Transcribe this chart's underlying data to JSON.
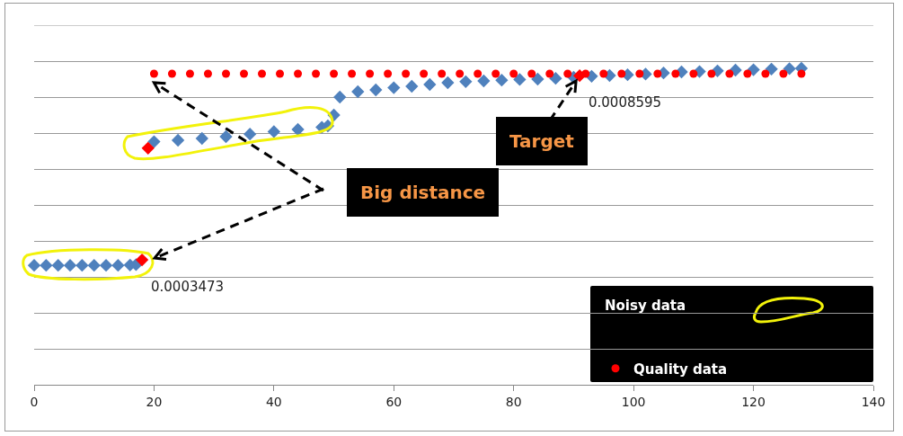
{
  "chart_data": {
    "type": "scatter",
    "x": [
      0,
      2,
      4,
      6,
      8,
      10,
      12,
      14,
      16,
      17,
      20,
      24,
      28,
      32,
      36,
      40,
      44,
      48,
      49,
      50,
      51,
      54,
      57,
      60,
      63,
      66,
      69,
      72,
      75,
      78,
      81,
      84,
      87,
      90,
      93,
      96,
      99,
      102,
      105,
      108,
      111,
      114,
      117,
      120,
      123,
      126,
      128
    ],
    "series": [
      {
        "color": "#4f81bd",
        "marker": "diamond",
        "values": [
          0.000332,
          0.000332,
          0.000332,
          0.000332,
          0.000332,
          0.000332,
          0.000332,
          0.000332,
          0.000333,
          0.000334,
          0.000676,
          0.00068,
          0.000685,
          0.00069,
          0.000697,
          0.000704,
          0.00071,
          0.000716,
          0.00072,
          0.00075,
          0.0008,
          0.000815,
          0.00082,
          0.000826,
          0.00083,
          0.000835,
          0.00084,
          0.000843,
          0.000845,
          0.000847,
          0.000849,
          0.00085,
          0.000852,
          0.000855,
          0.000858,
          0.00086,
          0.000862,
          0.000864,
          0.000867,
          0.00087,
          0.000871,
          0.000873,
          0.000875,
          0.000876,
          0.000878,
          0.000879,
          0.00088
        ]
      },
      {
        "color": "#ff0000",
        "marker": "diamond",
        "x": [
          18,
          19,
          91
        ],
        "values": [
          0.0003473,
          0.000658,
          0.0008595
        ],
        "value_labels": [
          "0.0003473",
          null,
          "0.0008595"
        ]
      },
      {
        "name": "Quality data",
        "color": "#ff0000",
        "marker": "circle",
        "x": [
          20,
          23,
          26,
          29,
          32,
          35,
          38,
          41,
          44,
          47,
          50,
          53,
          56,
          59,
          62,
          65,
          68,
          71,
          74,
          77,
          80,
          83,
          86,
          89,
          92,
          95,
          98,
          101,
          104,
          107,
          110,
          113,
          116,
          119,
          122,
          125,
          128
        ],
        "values": [
          0.000865,
          0.000865,
          0.000865,
          0.000865,
          0.000865,
          0.000865,
          0.000865,
          0.000865,
          0.000865,
          0.000865,
          0.000865,
          0.000865,
          0.000865,
          0.000865,
          0.000865,
          0.000865,
          0.000865,
          0.000865,
          0.000865,
          0.000865,
          0.000865,
          0.000865,
          0.000865,
          0.000865,
          0.000865,
          0.000865,
          0.000865,
          0.000865,
          0.000865,
          0.000865,
          0.000865,
          0.000865,
          0.000865,
          0.000865,
          0.000865,
          0.000865,
          0.000865
        ]
      }
    ],
    "xlim": [
      0,
      140
    ],
    "xticks": [
      0,
      20,
      40,
      60,
      80,
      100,
      120,
      140
    ],
    "ylim": [
      0,
      0.001
    ],
    "yticks": [
      {
        "value": 0,
        "label": null
      },
      {
        "value": 0.0001,
        "label": null
      },
      {
        "value": 0.0002,
        "label": null
      },
      {
        "value": 0.0003,
        "label": null
      },
      {
        "value": 0.0004,
        "label": null
      },
      {
        "value": 0.0005,
        "label": null
      },
      {
        "value": 0.0006,
        "label": null
      },
      {
        "value": 0.0007,
        "label": null
      },
      {
        "value": 0.0008,
        "label": null
      },
      {
        "value": 0.0009,
        "label": null
      },
      {
        "value": 0.001,
        "label": null
      }
    ],
    "grid": "y",
    "tick_labels": "x",
    "legend": "bottom right",
    "annotations": [
      "Big distance",
      "Target",
      "Noisy data"
    ]
  }
}
